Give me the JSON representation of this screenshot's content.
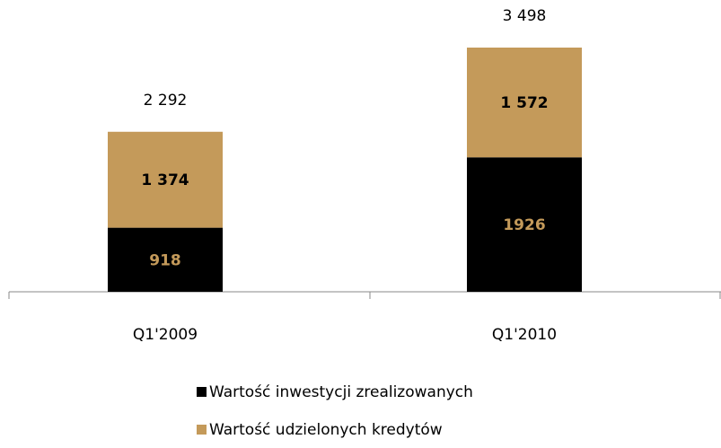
{
  "chart_data": {
    "type": "stacked_bar",
    "categories": [
      "Q1'2009",
      "Q1'2010"
    ],
    "series": [
      {
        "name": "Wartość inwestycji zrealizowanych",
        "color": "#000000",
        "label_color": "#c49a5a",
        "values": [
          918,
          1926
        ]
      },
      {
        "name": "Wartość udzielonych kredytów",
        "color": "#c49a5a",
        "label_color": "#000000",
        "values": [
          1374,
          1572
        ],
        "value_labels": [
          "1 374",
          "1 572"
        ]
      }
    ],
    "totals": [
      2292,
      3498
    ],
    "total_labels": [
      "2 292",
      "3 498"
    ],
    "legend": "bottom"
  }
}
